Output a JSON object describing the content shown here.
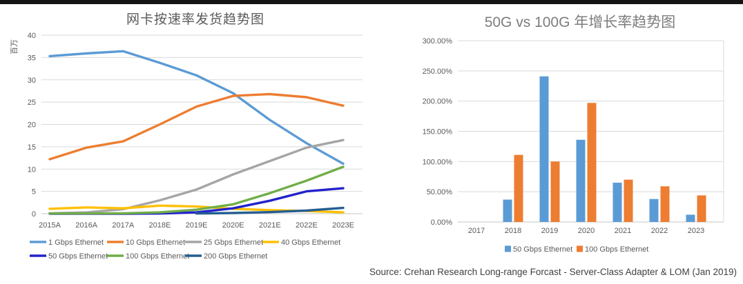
{
  "page": {
    "background": "#FFFFFF",
    "top_bar_color": "#141414",
    "text_color": "#595959",
    "gridline_color": "#D9D9D9",
    "source_note": "Source: Crehan Research Long-range Forcast - Server-Class Adapter & LOM (Jan 2019)"
  },
  "chart_data": [
    {
      "type": "line",
      "title": "网卡按速率发货趋势图",
      "ylabel": "百万",
      "xlabel": "",
      "categories": [
        "2015A",
        "2016A",
        "2017A",
        "2018E",
        "2019E",
        "2020E",
        "2021E",
        "2022E",
        "2023E"
      ],
      "ylim": [
        0,
        40
      ],
      "ytick_step": 5,
      "grid": true,
      "legend_position": "bottom",
      "series": [
        {
          "name": "1 Gbps Ethernet",
          "color": "#5B9BD5",
          "values": [
            35.3,
            35.9,
            36.4,
            33.8,
            31.0,
            27.0,
            21.0,
            15.8,
            11.2
          ]
        },
        {
          "name": "10 Gbps Ethernet",
          "color": "#ED7D31",
          "values": [
            12.2,
            14.8,
            16.2,
            20.0,
            24.0,
            26.4,
            26.8,
            26.1,
            24.2
          ]
        },
        {
          "name": "25 Gbps Ethernet",
          "color": "#A5A5A5",
          "values": [
            0.1,
            0.3,
            1.0,
            3.0,
            5.4,
            8.8,
            11.8,
            14.8,
            16.5
          ]
        },
        {
          "name": "40 Gbps Ethernet",
          "color": "#FFC000",
          "values": [
            1.1,
            1.4,
            1.2,
            1.8,
            1.6,
            1.1,
            0.8,
            0.6,
            0.3
          ]
        },
        {
          "name": "50 Gbps Ethernet",
          "color": "#2222CC",
          "values": [
            0.0,
            0.0,
            0.0,
            0.05,
            0.3,
            1.2,
            2.9,
            5.0,
            5.7
          ]
        },
        {
          "name": "100 Gbps Ethernet",
          "color": "#70AD47",
          "values": [
            0.05,
            0.05,
            0.1,
            0.3,
            0.9,
            2.1,
            4.6,
            7.4,
            10.5
          ]
        },
        {
          "name": "200 Gbps Ethernet",
          "color": "#255E91",
          "values": [
            null,
            null,
            null,
            null,
            0.05,
            0.15,
            0.35,
            0.7,
            1.3
          ]
        }
      ]
    },
    {
      "type": "bar",
      "title": "50G vs 100G 年增长率趋势图",
      "categories": [
        "2017",
        "2018",
        "2019",
        "2020",
        "2021",
        "2022",
        "2023"
      ],
      "unit": "%",
      "ylim": [
        0,
        300
      ],
      "ytick_step": 50,
      "ytick_format": "percent-2dp",
      "grid": true,
      "legend_position": "bottom",
      "series": [
        {
          "name": "50 Gbps Ethernet",
          "color": "#5B9BD5",
          "values": [
            0,
            37,
            241,
            136,
            65,
            38,
            12
          ]
        },
        {
          "name": "100 Gbps Ethernet",
          "color": "#ED7D31",
          "values": [
            0,
            111,
            100,
            197,
            70,
            59,
            44
          ]
        }
      ]
    }
  ]
}
